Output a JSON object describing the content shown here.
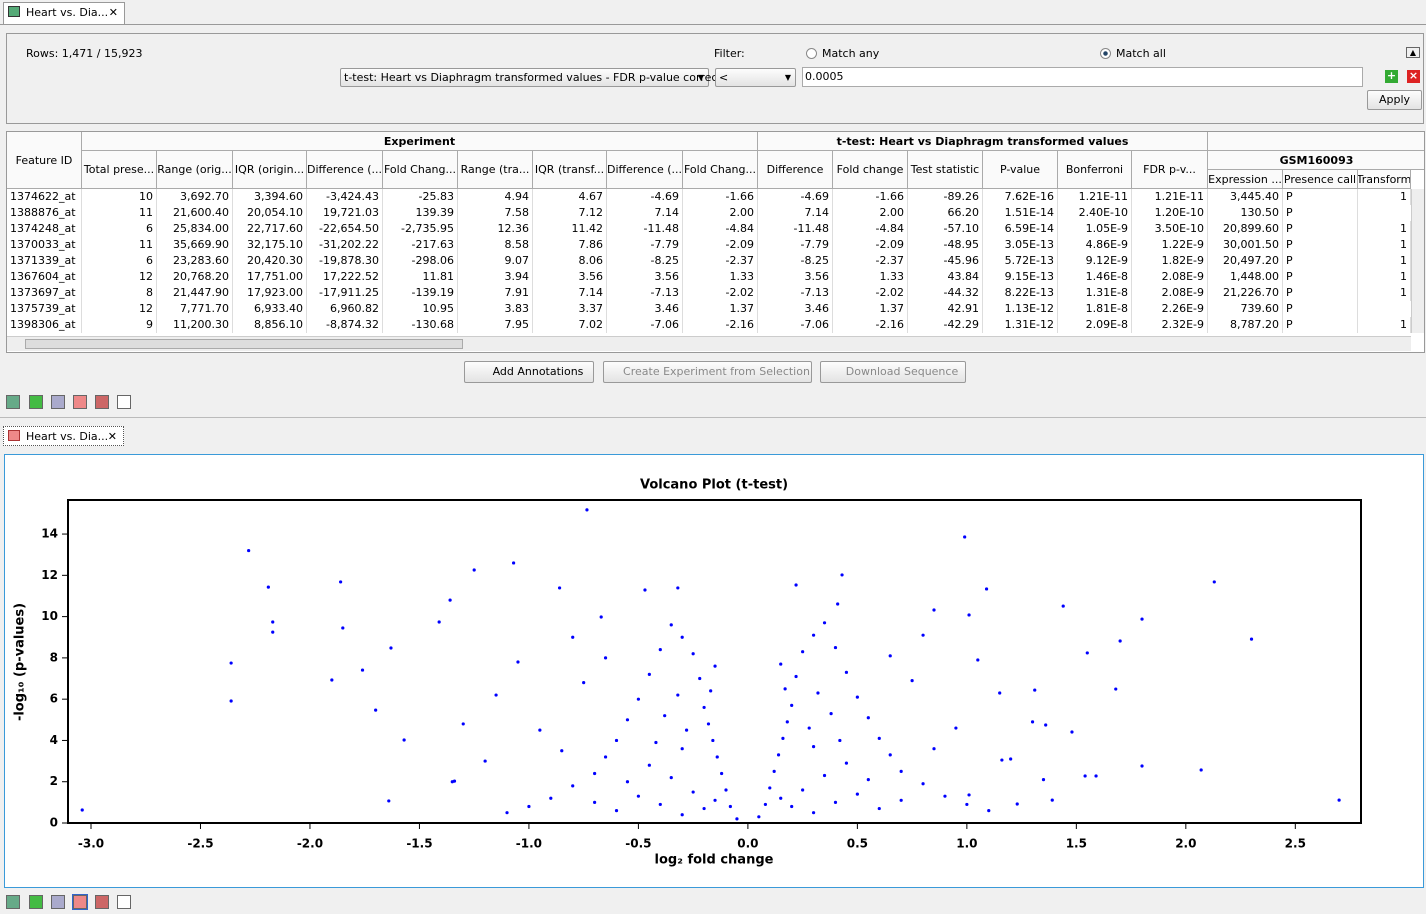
{
  "tabs": {
    "top": "Heart vs. Dia...",
    "plot": "Heart vs. Dia..."
  },
  "filter": {
    "rows": "Rows: 1,471 / 15,923",
    "label": "Filter:",
    "match_any": "Match any",
    "match_all": "Match all",
    "column": "t-test: Heart vs Diaphragm transformed values - FDR p-value correction",
    "operator": "<",
    "value": "0.0005",
    "apply": "Apply"
  },
  "table": {
    "feature_header": "Feature ID",
    "groups": [
      "Experiment",
      "t-test: Heart vs Diaphragm transformed values",
      "GSM160093"
    ],
    "columns": [
      "Total prese...",
      "Range (orig...",
      "IQR (origin...",
      "Difference (...",
      "Fold Chang...",
      "Range (tra...",
      "IQR (transf...",
      "Difference (...",
      "Fold Chang...",
      "Difference",
      "Fold change",
      "Test statistic",
      "P-value",
      "Bonferroni",
      "FDR p-v...",
      "Expression ...",
      "Presence call",
      "Transform"
    ],
    "rows": [
      [
        "1374622_at",
        "10",
        "3,692.70",
        "3,394.60",
        "-3,424.43",
        "-25.83",
        "4.94",
        "4.67",
        "-4.69",
        "-1.66",
        "-4.69",
        "-1.66",
        "-89.26",
        "7.62E-16",
        "1.21E-11",
        "1.21E-11",
        "3,445.40",
        "P"
      ],
      [
        "1388876_at",
        "11",
        "21,600.40",
        "20,054.10",
        "19,721.03",
        "139.39",
        "7.58",
        "7.12",
        "7.14",
        "2.00",
        "7.14",
        "2.00",
        "66.20",
        "1.51E-14",
        "2.40E-10",
        "1.20E-10",
        "130.50",
        "P"
      ],
      [
        "1374248_at",
        "6",
        "25,834.00",
        "22,717.60",
        "-22,654.50",
        "-2,735.95",
        "12.36",
        "11.42",
        "-11.48",
        "-4.84",
        "-11.48",
        "-4.84",
        "-57.10",
        "6.59E-14",
        "1.05E-9",
        "3.50E-10",
        "20,899.60",
        "P"
      ],
      [
        "1370033_at",
        "11",
        "35,669.90",
        "32,175.10",
        "-31,202.22",
        "-217.63",
        "8.58",
        "7.86",
        "-7.79",
        "-2.09",
        "-7.79",
        "-2.09",
        "-48.95",
        "3.05E-13",
        "4.86E-9",
        "1.22E-9",
        "30,001.50",
        "P"
      ],
      [
        "1371339_at",
        "6",
        "23,283.60",
        "20,420.30",
        "-19,878.30",
        "-298.06",
        "9.07",
        "8.06",
        "-8.25",
        "-2.37",
        "-8.25",
        "-2.37",
        "-45.96",
        "5.72E-13",
        "9.12E-9",
        "1.82E-9",
        "20,497.20",
        "P"
      ],
      [
        "1367604_at",
        "12",
        "20,768.20",
        "17,751.00",
        "17,222.52",
        "11.81",
        "3.94",
        "3.56",
        "3.56",
        "1.33",
        "3.56",
        "1.33",
        "43.84",
        "9.15E-13",
        "1.46E-8",
        "2.08E-9",
        "1,448.00",
        "P"
      ],
      [
        "1373697_at",
        "8",
        "21,447.90",
        "17,923.00",
        "-17,911.25",
        "-139.19",
        "7.91",
        "7.14",
        "-7.13",
        "-2.02",
        "-7.13",
        "-2.02",
        "-44.32",
        "8.22E-13",
        "1.31E-8",
        "2.08E-9",
        "21,226.70",
        "P"
      ],
      [
        "1375739_at",
        "12",
        "7,771.70",
        "6,933.40",
        "6,960.82",
        "10.95",
        "3.83",
        "3.37",
        "3.46",
        "1.37",
        "3.46",
        "1.37",
        "42.91",
        "1.13E-12",
        "1.81E-8",
        "2.26E-9",
        "739.60",
        "P"
      ],
      [
        "1398306_at",
        "9",
        "11,200.30",
        "8,856.10",
        "-8,874.32",
        "-130.68",
        "7.95",
        "7.02",
        "-7.06",
        "-2.16",
        "-7.06",
        "-2.16",
        "-42.29",
        "1.31E-12",
        "2.09E-8",
        "2.32E-9",
        "8,787.20",
        "P"
      ]
    ],
    "transform": [
      "1",
      null,
      "1",
      "1",
      "1",
      "1",
      "1",
      null,
      "1"
    ]
  },
  "buttons": [
    "Add Annotations",
    "Create Experiment from Selection",
    "Download Sequence"
  ],
  "chart_data": {
    "type": "scatter",
    "title": "Volcano Plot (t-test)",
    "x_label": "log₂ fold change",
    "y_label": "-log₁₀ (p-values)",
    "color": "#0000ff",
    "x": [
      -0.735,
      -2.28,
      0.99,
      -2.19,
      2.13,
      -2.36,
      -2.36,
      -2.17,
      -2.17,
      -1.86,
      -3.04,
      2.7,
      2.3,
      2.07,
      1.8,
      1.8,
      1.44,
      1.09,
      1.01,
      -1.07,
      -1.25,
      0.41,
      0.22,
      1.68,
      1.7,
      1.55,
      1.48,
      1.59,
      1.54,
      1.23,
      -1.64,
      -1.34,
      -1.57,
      -1.7,
      -1.76,
      -1.9,
      -1.85,
      -1.41,
      -1.36,
      -1.63,
      -0.86,
      -0.67,
      -0.47,
      -0.32,
      0.43,
      0.85,
      1.31,
      1.36,
      1.16,
      1.01,
      1.39,
      -0.05,
      -0.08,
      -0.1,
      -0.12,
      -0.14,
      -0.16,
      -0.18,
      -0.2,
      -0.17,
      -0.22,
      -0.15,
      -0.25,
      -0.3,
      -0.35,
      -0.4,
      -0.45,
      -0.5,
      -0.55,
      -0.6,
      -0.65,
      -0.7,
      -0.8,
      -0.9,
      -1.0,
      -1.1,
      -0.3,
      -0.4,
      -0.5,
      -0.6,
      -0.7,
      -0.25,
      -0.35,
      -0.45,
      -0.3,
      -0.28,
      -0.38,
      -0.32,
      -0.42,
      -0.55,
      -0.85,
      -0.95,
      -1.2,
      -1.3,
      -1.15,
      -0.75,
      -0.65,
      -0.8,
      -1.05,
      -1.35,
      -0.2,
      -0.15,
      0.05,
      0.08,
      0.1,
      0.12,
      0.14,
      0.16,
      0.18,
      0.2,
      0.17,
      0.22,
      0.15,
      0.25,
      0.3,
      0.35,
      0.4,
      0.45,
      0.5,
      0.55,
      0.6,
      0.65,
      0.7,
      0.8,
      0.9,
      1.0,
      1.1,
      0.3,
      0.4,
      0.5,
      0.6,
      0.7,
      0.25,
      0.35,
      0.45,
      0.3,
      0.28,
      0.38,
      0.32,
      0.42,
      0.55,
      0.85,
      0.95,
      1.2,
      1.3,
      1.15,
      0.75,
      0.65,
      0.8,
      1.05,
      1.35,
      0.2,
      0.15
    ],
    "values": [
      15.17,
      13.2,
      13.86,
      11.43,
      11.68,
      7.75,
      5.91,
      9.74,
      9.25,
      11.68,
      0.63,
      1.11,
      8.91,
      2.57,
      9.88,
      2.76,
      10.51,
      11.34,
      10.08,
      12.6,
      12.26,
      10.61,
      11.53,
      6.49,
      8.82,
      8.24,
      4.41,
      2.28,
      2.28,
      0.92,
      1.07,
      2.03,
      4.02,
      5.47,
      7.41,
      6.93,
      9.45,
      9.74,
      10.8,
      8.48,
      11.39,
      9.98,
      11.29,
      11.39,
      12.02,
      10.32,
      6.44,
      4.75,
      3.05,
      1.36,
      1.11,
      0.2,
      0.8,
      1.6,
      2.4,
      3.2,
      4.0,
      4.8,
      5.6,
      6.4,
      7.0,
      7.6,
      8.2,
      9.0,
      9.6,
      8.4,
      7.2,
      6.0,
      5.0,
      4.0,
      3.2,
      2.4,
      1.8,
      1.2,
      0.8,
      0.5,
      0.4,
      0.9,
      1.3,
      0.6,
      1.0,
      1.5,
      2.2,
      2.8,
      3.6,
      4.5,
      5.2,
      6.2,
      3.9,
      2.0,
      3.5,
      4.5,
      3.0,
      4.8,
      6.2,
      6.8,
      8.0,
      9.0,
      7.8,
      2.0,
      0.7,
      1.1,
      0.3,
      0.9,
      1.7,
      2.5,
      3.3,
      4.1,
      4.9,
      5.7,
      6.5,
      7.1,
      7.7,
      8.3,
      9.1,
      9.7,
      8.5,
      7.3,
      6.1,
      5.1,
      4.1,
      3.3,
      2.5,
      1.9,
      1.3,
      0.9,
      0.6,
      0.5,
      1.0,
      1.4,
      0.7,
      1.1,
      1.6,
      2.3,
      2.9,
      3.7,
      4.6,
      5.3,
      6.3,
      4.0,
      2.1,
      3.6,
      4.6,
      3.1,
      4.9,
      6.3,
      6.9,
      8.1,
      9.1,
      7.9,
      2.1,
      0.8,
      1.2
    ],
    "xlim": [
      -3.105,
      2.8
    ],
    "ylim": [
      0,
      15.65
    ],
    "xticks": [
      {
        "value": -3,
        "label": "-3.0"
      },
      -2.5,
      {
        "value": -2,
        "label": "-2.0"
      },
      -1.5,
      {
        "value": -1,
        "label": "-1.0"
      },
      -0.5,
      {
        "value": 0,
        "label": "0.0"
      },
      0.5,
      {
        "value": 1,
        "label": "1.0"
      },
      1.5,
      {
        "value": 2,
        "label": "2.0"
      },
      2.5
    ],
    "yticks": [
      0,
      2,
      4,
      6,
      8,
      10,
      12,
      14
    ]
  }
}
